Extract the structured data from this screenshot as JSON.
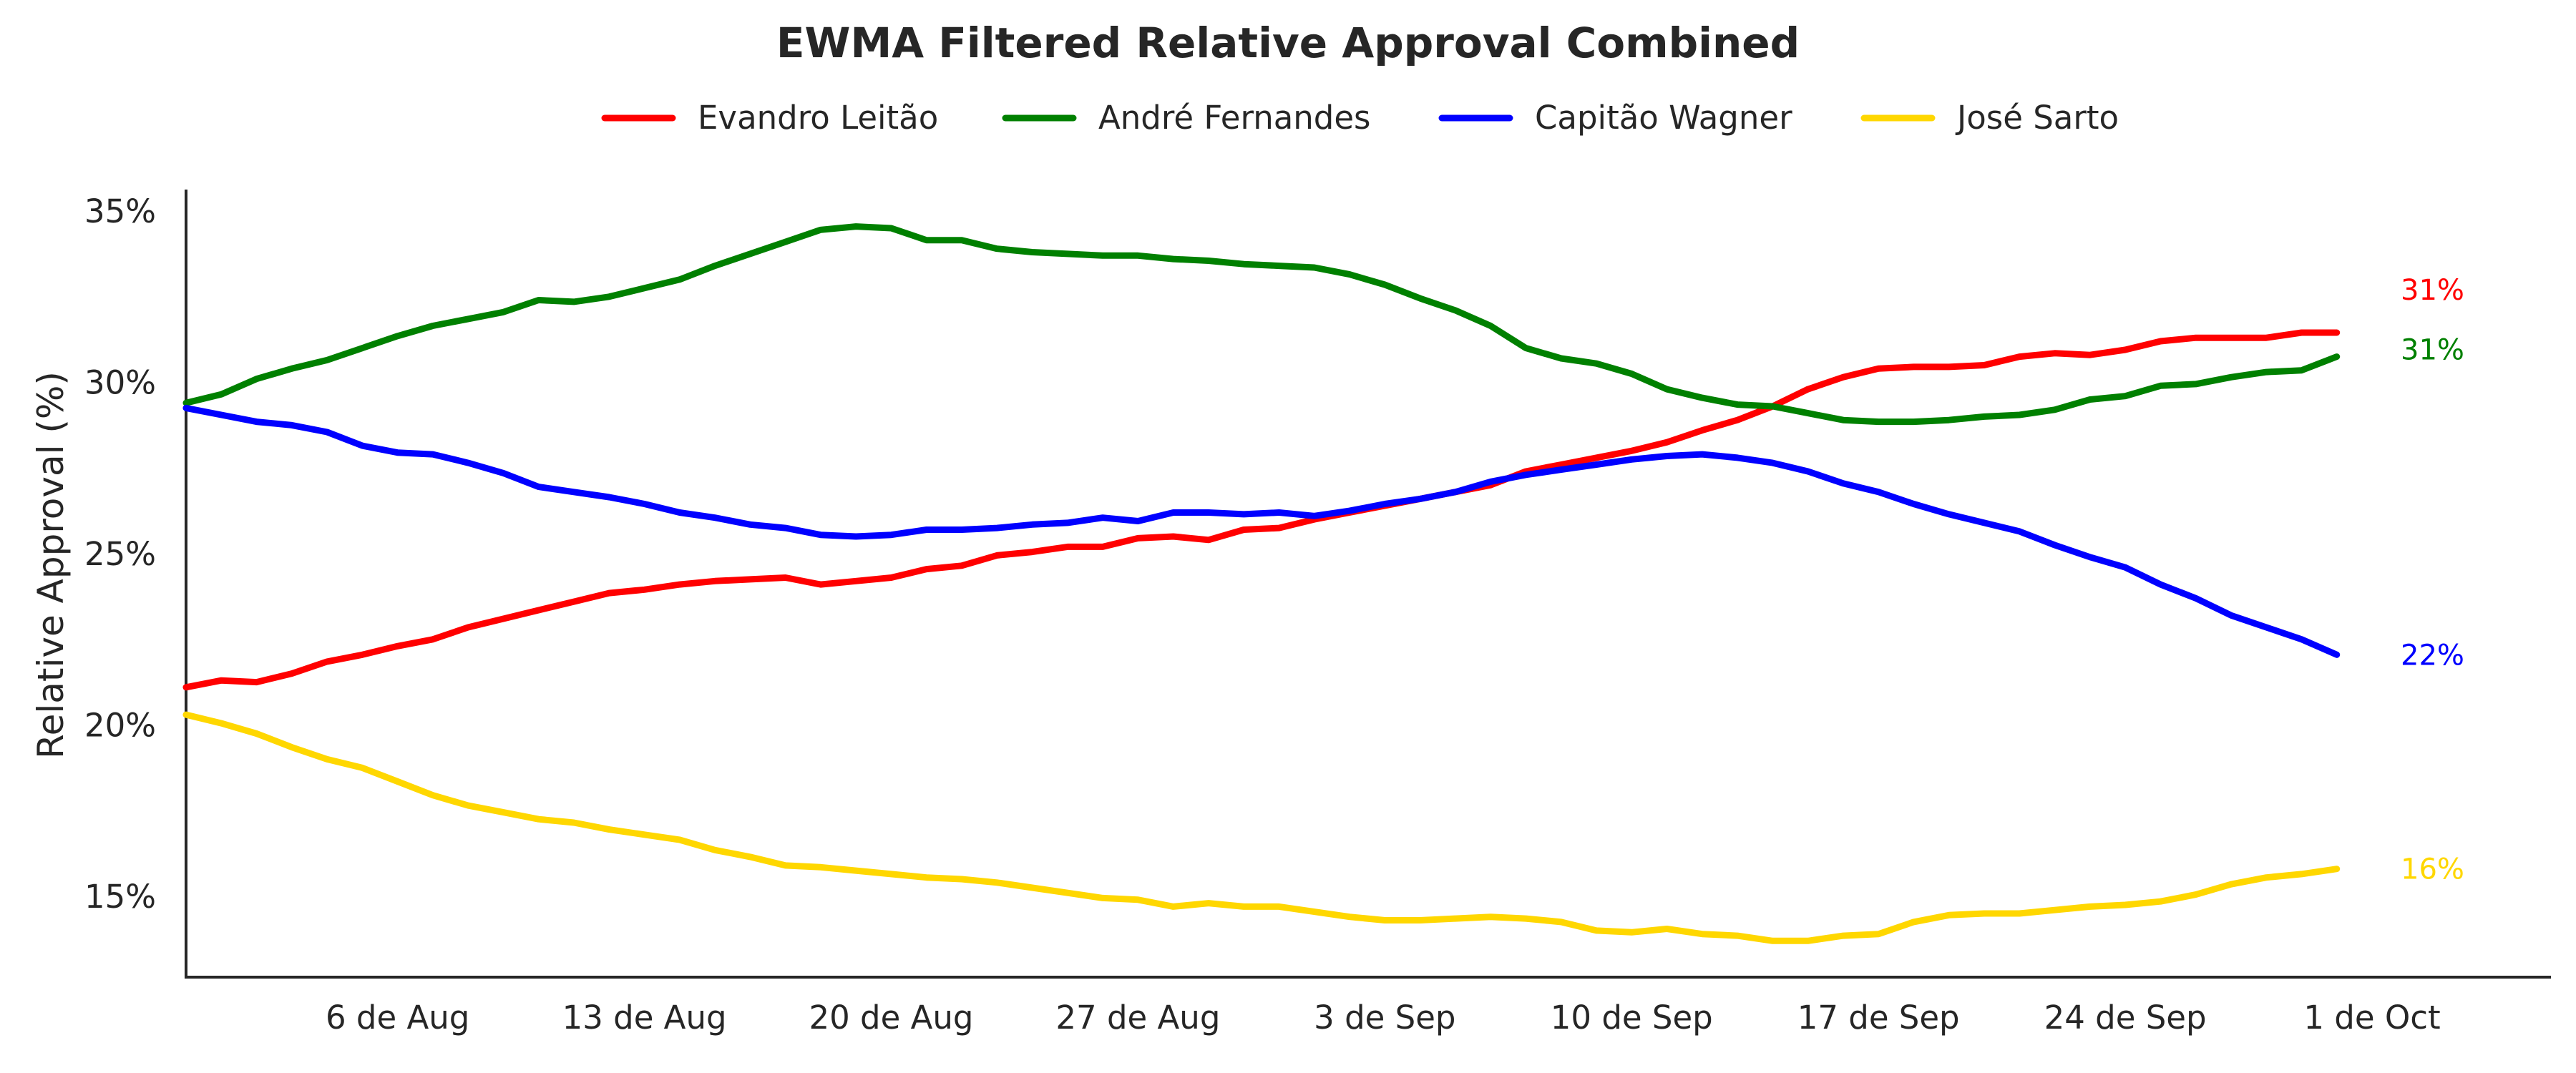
{
  "chart_data": {
    "type": "line",
    "title": "EWMA Filtered Relative Approval Combined",
    "ylabel": "Relative Approval (%)",
    "xlabel": "",
    "x_start": "2024-07-31",
    "x_end": "2024-10-01",
    "xlim": [
      "2024-07-31",
      "2024-10-04"
    ],
    "ylim": [
      12.5,
      35.6
    ],
    "x_ticks": [
      {
        "date": "2024-08-06",
        "label": "6 de Aug"
      },
      {
        "date": "2024-08-13",
        "label": "13 de Aug"
      },
      {
        "date": "2024-08-20",
        "label": "20 de Aug"
      },
      {
        "date": "2024-08-27",
        "label": "27 de Aug"
      },
      {
        "date": "2024-09-03",
        "label": "3 de Sep"
      },
      {
        "date": "2024-09-10",
        "label": "10 de Sep"
      },
      {
        "date": "2024-09-17",
        "label": "17 de Sep"
      },
      {
        "date": "2024-09-24",
        "label": "24 de Sep"
      },
      {
        "date": "2024-10-01",
        "label": "1 de Oct"
      }
    ],
    "y_ticks": [
      {
        "value": 15,
        "label": "15%"
      },
      {
        "value": 20,
        "label": "20%"
      },
      {
        "value": 25,
        "label": "25%"
      },
      {
        "value": 30,
        "label": "30%"
      },
      {
        "value": 35,
        "label": "35%"
      }
    ],
    "legend_position": "top-center",
    "grid": false,
    "series": [
      {
        "name": "Evandro Leitão",
        "color": "#ff0000",
        "end_label": "31%",
        "points": [
          [
            "2024-07-31",
            21.1
          ],
          [
            "2024-08-01",
            21.3
          ],
          [
            "2024-08-02",
            21.25
          ],
          [
            "2024-08-03",
            21.5
          ],
          [
            "2024-08-04",
            21.85
          ],
          [
            "2024-08-05",
            22.05
          ],
          [
            "2024-08-06",
            22.3
          ],
          [
            "2024-08-07",
            22.5
          ],
          [
            "2024-08-08",
            22.85
          ],
          [
            "2024-08-09",
            23.1
          ],
          [
            "2024-08-10",
            23.35
          ],
          [
            "2024-08-11",
            23.6
          ],
          [
            "2024-08-12",
            23.85
          ],
          [
            "2024-08-13",
            23.95
          ],
          [
            "2024-08-14",
            24.1
          ],
          [
            "2024-08-15",
            24.2
          ],
          [
            "2024-08-16",
            24.25
          ],
          [
            "2024-08-17",
            24.3
          ],
          [
            "2024-08-18",
            24.1
          ],
          [
            "2024-08-19",
            24.2
          ],
          [
            "2024-08-20",
            24.3
          ],
          [
            "2024-08-21",
            24.55
          ],
          [
            "2024-08-22",
            24.65
          ],
          [
            "2024-08-23",
            24.95
          ],
          [
            "2024-08-24",
            25.05
          ],
          [
            "2024-08-25",
            25.2
          ],
          [
            "2024-08-26",
            25.2
          ],
          [
            "2024-08-27",
            25.45
          ],
          [
            "2024-08-28",
            25.5
          ],
          [
            "2024-08-29",
            25.4
          ],
          [
            "2024-08-30",
            25.7
          ],
          [
            "2024-08-31",
            25.75
          ],
          [
            "2024-09-01",
            26.0
          ],
          [
            "2024-09-02",
            26.2
          ],
          [
            "2024-09-03",
            26.4
          ],
          [
            "2024-09-04",
            26.6
          ],
          [
            "2024-09-05",
            26.8
          ],
          [
            "2024-09-06",
            27.0
          ],
          [
            "2024-09-07",
            27.4
          ],
          [
            "2024-09-08",
            27.6
          ],
          [
            "2024-09-09",
            27.8
          ],
          [
            "2024-09-10",
            28.0
          ],
          [
            "2024-09-11",
            28.25
          ],
          [
            "2024-09-12",
            28.6
          ],
          [
            "2024-09-13",
            28.9
          ],
          [
            "2024-09-14",
            29.3
          ],
          [
            "2024-09-15",
            29.8
          ],
          [
            "2024-09-16",
            30.15
          ],
          [
            "2024-09-17",
            30.4
          ],
          [
            "2024-09-18",
            30.45
          ],
          [
            "2024-09-19",
            30.45
          ],
          [
            "2024-09-20",
            30.5
          ],
          [
            "2024-09-21",
            30.75
          ],
          [
            "2024-09-22",
            30.85
          ],
          [
            "2024-09-23",
            30.8
          ],
          [
            "2024-09-24",
            30.95
          ],
          [
            "2024-09-25",
            31.2
          ],
          [
            "2024-09-26",
            31.3
          ],
          [
            "2024-09-27",
            31.3
          ],
          [
            "2024-09-28",
            31.3
          ],
          [
            "2024-09-29",
            31.45
          ],
          [
            "2024-09-30",
            31.45
          ]
        ]
      },
      {
        "name": "André Fernandes",
        "color": "#008000",
        "end_label": "31%",
        "points": [
          [
            "2024-07-31",
            29.4
          ],
          [
            "2024-08-01",
            29.65
          ],
          [
            "2024-08-02",
            30.1
          ],
          [
            "2024-08-03",
            30.4
          ],
          [
            "2024-08-04",
            30.65
          ],
          [
            "2024-08-05",
            31.0
          ],
          [
            "2024-08-06",
            31.35
          ],
          [
            "2024-08-07",
            31.65
          ],
          [
            "2024-08-08",
            31.85
          ],
          [
            "2024-08-09",
            32.05
          ],
          [
            "2024-08-10",
            32.4
          ],
          [
            "2024-08-11",
            32.35
          ],
          [
            "2024-08-12",
            32.5
          ],
          [
            "2024-08-13",
            32.75
          ],
          [
            "2024-08-14",
            33.0
          ],
          [
            "2024-08-15",
            33.4
          ],
          [
            "2024-08-16",
            33.75
          ],
          [
            "2024-08-17",
            34.1
          ],
          [
            "2024-08-18",
            34.45
          ],
          [
            "2024-08-19",
            34.55
          ],
          [
            "2024-08-20",
            34.5
          ],
          [
            "2024-08-21",
            34.15
          ],
          [
            "2024-08-22",
            34.15
          ],
          [
            "2024-08-23",
            33.9
          ],
          [
            "2024-08-24",
            33.8
          ],
          [
            "2024-08-25",
            33.75
          ],
          [
            "2024-08-26",
            33.7
          ],
          [
            "2024-08-27",
            33.7
          ],
          [
            "2024-08-28",
            33.6
          ],
          [
            "2024-08-29",
            33.55
          ],
          [
            "2024-08-30",
            33.45
          ],
          [
            "2024-08-31",
            33.4
          ],
          [
            "2024-09-01",
            33.35
          ],
          [
            "2024-09-02",
            33.15
          ],
          [
            "2024-09-03",
            32.85
          ],
          [
            "2024-09-04",
            32.45
          ],
          [
            "2024-09-05",
            32.1
          ],
          [
            "2024-09-06",
            31.65
          ],
          [
            "2024-09-07",
            31.0
          ],
          [
            "2024-09-08",
            30.7
          ],
          [
            "2024-09-09",
            30.55
          ],
          [
            "2024-09-10",
            30.25
          ],
          [
            "2024-09-11",
            29.8
          ],
          [
            "2024-09-12",
            29.55
          ],
          [
            "2024-09-13",
            29.35
          ],
          [
            "2024-09-14",
            29.3
          ],
          [
            "2024-09-15",
            29.1
          ],
          [
            "2024-09-16",
            28.9
          ],
          [
            "2024-09-17",
            28.85
          ],
          [
            "2024-09-18",
            28.85
          ],
          [
            "2024-09-19",
            28.9
          ],
          [
            "2024-09-20",
            29.0
          ],
          [
            "2024-09-21",
            29.05
          ],
          [
            "2024-09-22",
            29.2
          ],
          [
            "2024-09-23",
            29.5
          ],
          [
            "2024-09-24",
            29.6
          ],
          [
            "2024-09-25",
            29.9
          ],
          [
            "2024-09-26",
            29.95
          ],
          [
            "2024-09-27",
            30.15
          ],
          [
            "2024-09-28",
            30.3
          ],
          [
            "2024-09-29",
            30.35
          ],
          [
            "2024-09-30",
            30.75
          ]
        ]
      },
      {
        "name": "Capitão Wagner",
        "color": "#0000ff",
        "end_label": "22%",
        "points": [
          [
            "2024-07-31",
            29.25
          ],
          [
            "2024-08-01",
            29.05
          ],
          [
            "2024-08-02",
            28.85
          ],
          [
            "2024-08-03",
            28.75
          ],
          [
            "2024-08-04",
            28.55
          ],
          [
            "2024-08-05",
            28.15
          ],
          [
            "2024-08-06",
            27.95
          ],
          [
            "2024-08-07",
            27.9
          ],
          [
            "2024-08-08",
            27.65
          ],
          [
            "2024-08-09",
            27.35
          ],
          [
            "2024-08-10",
            26.95
          ],
          [
            "2024-08-11",
            26.8
          ],
          [
            "2024-08-12",
            26.65
          ],
          [
            "2024-08-13",
            26.45
          ],
          [
            "2024-08-14",
            26.2
          ],
          [
            "2024-08-15",
            26.05
          ],
          [
            "2024-08-16",
            25.85
          ],
          [
            "2024-08-17",
            25.75
          ],
          [
            "2024-08-18",
            25.55
          ],
          [
            "2024-08-19",
            25.5
          ],
          [
            "2024-08-20",
            25.55
          ],
          [
            "2024-08-21",
            25.7
          ],
          [
            "2024-08-22",
            25.7
          ],
          [
            "2024-08-23",
            25.75
          ],
          [
            "2024-08-24",
            25.85
          ],
          [
            "2024-08-25",
            25.9
          ],
          [
            "2024-08-26",
            26.05
          ],
          [
            "2024-08-27",
            25.95
          ],
          [
            "2024-08-28",
            26.2
          ],
          [
            "2024-08-29",
            26.2
          ],
          [
            "2024-08-30",
            26.15
          ],
          [
            "2024-08-31",
            26.2
          ],
          [
            "2024-09-01",
            26.1
          ],
          [
            "2024-09-02",
            26.25
          ],
          [
            "2024-09-03",
            26.45
          ],
          [
            "2024-09-04",
            26.6
          ],
          [
            "2024-09-05",
            26.8
          ],
          [
            "2024-09-06",
            27.1
          ],
          [
            "2024-09-07",
            27.3
          ],
          [
            "2024-09-08",
            27.45
          ],
          [
            "2024-09-09",
            27.6
          ],
          [
            "2024-09-10",
            27.75
          ],
          [
            "2024-09-11",
            27.85
          ],
          [
            "2024-09-12",
            27.9
          ],
          [
            "2024-09-13",
            27.8
          ],
          [
            "2024-09-14",
            27.65
          ],
          [
            "2024-09-15",
            27.4
          ],
          [
            "2024-09-16",
            27.05
          ],
          [
            "2024-09-17",
            26.8
          ],
          [
            "2024-09-18",
            26.45
          ],
          [
            "2024-09-19",
            26.15
          ],
          [
            "2024-09-20",
            25.9
          ],
          [
            "2024-09-21",
            25.65
          ],
          [
            "2024-09-22",
            25.25
          ],
          [
            "2024-09-23",
            24.9
          ],
          [
            "2024-09-24",
            24.6
          ],
          [
            "2024-09-25",
            24.1
          ],
          [
            "2024-09-26",
            23.7
          ],
          [
            "2024-09-27",
            23.2
          ],
          [
            "2024-09-28",
            22.85
          ],
          [
            "2024-09-29",
            22.5
          ],
          [
            "2024-09-30",
            22.05
          ]
        ]
      },
      {
        "name": "José Sarto",
        "color": "#ffd700",
        "end_label": "16%",
        "points": [
          [
            "2024-07-31",
            20.3
          ],
          [
            "2024-08-01",
            20.05
          ],
          [
            "2024-08-02",
            19.75
          ],
          [
            "2024-08-03",
            19.35
          ],
          [
            "2024-08-04",
            19.0
          ],
          [
            "2024-08-05",
            18.75
          ],
          [
            "2024-08-06",
            18.35
          ],
          [
            "2024-08-07",
            17.95
          ],
          [
            "2024-08-08",
            17.65
          ],
          [
            "2024-08-09",
            17.45
          ],
          [
            "2024-08-10",
            17.25
          ],
          [
            "2024-08-11",
            17.15
          ],
          [
            "2024-08-12",
            16.95
          ],
          [
            "2024-08-13",
            16.8
          ],
          [
            "2024-08-14",
            16.65
          ],
          [
            "2024-08-15",
            16.35
          ],
          [
            "2024-08-16",
            16.15
          ],
          [
            "2024-08-17",
            15.9
          ],
          [
            "2024-08-18",
            15.85
          ],
          [
            "2024-08-19",
            15.75
          ],
          [
            "2024-08-20",
            15.65
          ],
          [
            "2024-08-21",
            15.55
          ],
          [
            "2024-08-22",
            15.5
          ],
          [
            "2024-08-23",
            15.4
          ],
          [
            "2024-08-24",
            15.25
          ],
          [
            "2024-08-25",
            15.1
          ],
          [
            "2024-08-26",
            14.95
          ],
          [
            "2024-08-27",
            14.9
          ],
          [
            "2024-08-28",
            14.7
          ],
          [
            "2024-08-29",
            14.8
          ],
          [
            "2024-08-30",
            14.7
          ],
          [
            "2024-08-31",
            14.7
          ],
          [
            "2024-09-01",
            14.55
          ],
          [
            "2024-09-02",
            14.4
          ],
          [
            "2024-09-03",
            14.3
          ],
          [
            "2024-09-04",
            14.3
          ],
          [
            "2024-09-05",
            14.35
          ],
          [
            "2024-09-06",
            14.4
          ],
          [
            "2024-09-07",
            14.35
          ],
          [
            "2024-09-08",
            14.25
          ],
          [
            "2024-09-09",
            14.0
          ],
          [
            "2024-09-10",
            13.95
          ],
          [
            "2024-09-11",
            14.05
          ],
          [
            "2024-09-12",
            13.9
          ],
          [
            "2024-09-13",
            13.85
          ],
          [
            "2024-09-14",
            13.7
          ],
          [
            "2024-09-15",
            13.7
          ],
          [
            "2024-09-16",
            13.85
          ],
          [
            "2024-09-17",
            13.9
          ],
          [
            "2024-09-18",
            14.25
          ],
          [
            "2024-09-19",
            14.45
          ],
          [
            "2024-09-20",
            14.5
          ],
          [
            "2024-09-21",
            14.5
          ],
          [
            "2024-09-22",
            14.6
          ],
          [
            "2024-09-23",
            14.7
          ],
          [
            "2024-09-24",
            14.75
          ],
          [
            "2024-09-25",
            14.85
          ],
          [
            "2024-09-26",
            15.05
          ],
          [
            "2024-09-27",
            15.35
          ],
          [
            "2024-09-28",
            15.55
          ],
          [
            "2024-09-29",
            15.65
          ],
          [
            "2024-09-30",
            15.8
          ]
        ]
      }
    ]
  }
}
